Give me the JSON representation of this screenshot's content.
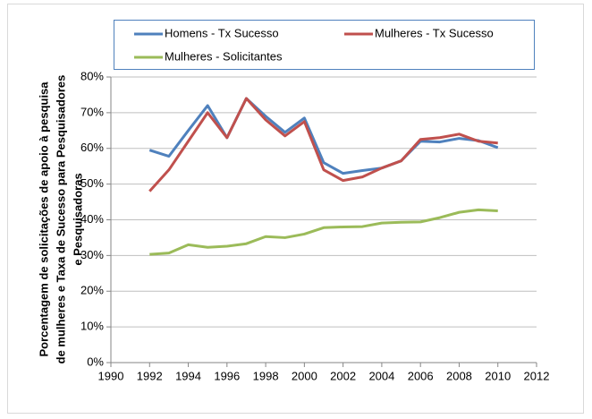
{
  "chart_data": {
    "type": "line",
    "y_label": [
      "Porcentagem de solicitações  de apoio à pesquisa",
      "de mulheres e Taxa de Sucesso  para Pesquisadores",
      "e Pesquisadoras"
    ],
    "x": [
      1992,
      1993,
      1994,
      1995,
      1996,
      1997,
      1998,
      1999,
      2000,
      2001,
      2002,
      2003,
      2004,
      2005,
      2006,
      2007,
      2008,
      2009,
      2010
    ],
    "series": [
      {
        "name": "Homens - Tx Sucesso",
        "color": "#4f81bd",
        "values": [
          59.5,
          57.8,
          65,
          72,
          63,
          74,
          69,
          64.5,
          68.5,
          56,
          53,
          53.8,
          54.5,
          56.5,
          62,
          61.8,
          62.8,
          62.2,
          60.2
        ]
      },
      {
        "name": "Mulheres - Tx Sucesso",
        "color": "#c0504d",
        "values": [
          48,
          54,
          62,
          70,
          63,
          74,
          68,
          63.5,
          67.5,
          54,
          51,
          52,
          54.5,
          56.5,
          62.5,
          63,
          64,
          62,
          61.5
        ]
      },
      {
        "name": "Mulheres - Solicitantes",
        "color": "#9bbb59",
        "values": [
          30.3,
          30.7,
          33,
          32.3,
          32.6,
          33.3,
          35.3,
          35,
          36,
          37.8,
          38,
          38.1,
          39.1,
          39.3,
          39.4,
          40.6,
          42.1,
          42.8,
          42.5
        ]
      }
    ],
    "xlim": [
      1990,
      2012
    ],
    "xticks": [
      1990,
      1992,
      1994,
      1996,
      1998,
      2000,
      2002,
      2004,
      2006,
      2008,
      2010,
      2012
    ],
    "ylim": [
      0,
      80
    ],
    "yticks": [
      {
        "value": 0,
        "label": "0%"
      },
      {
        "value": 10,
        "label": "10%"
      },
      {
        "value": 20,
        "label": "20%"
      },
      {
        "value": 30,
        "label": "30%"
      },
      {
        "value": 40,
        "label": "40%"
      },
      {
        "value": 50,
        "label": "50%"
      },
      {
        "value": 60,
        "label": "60%"
      },
      {
        "value": 70,
        "label": "70%"
      },
      {
        "value": 80,
        "label": "80%"
      }
    ],
    "grid": true,
    "legend": "top"
  }
}
